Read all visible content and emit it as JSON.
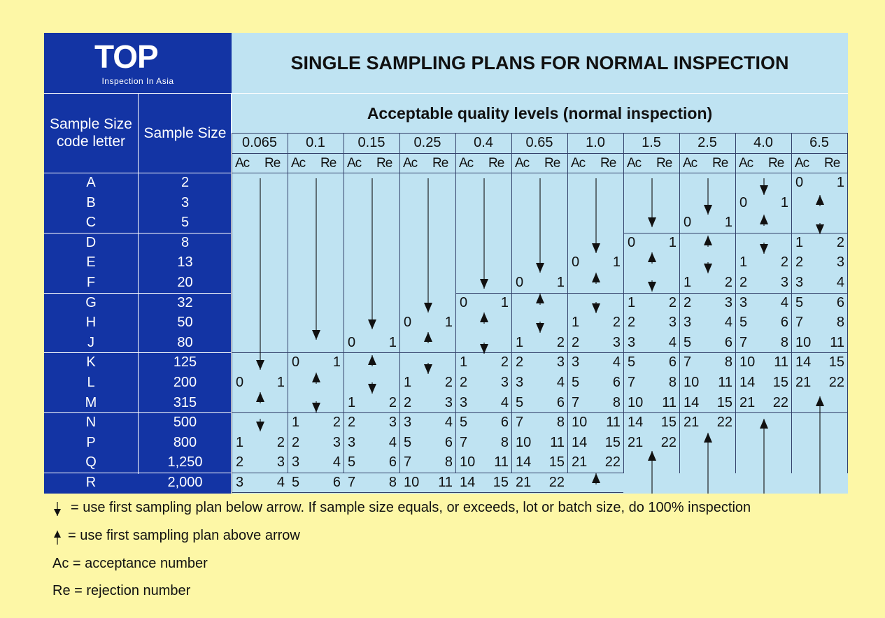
{
  "brand": {
    "logo_text": "TOP",
    "tagline": "Inspection In Asia"
  },
  "title": "SINGLE SAMPLING PLANS FOR NORMAL INSPECTION",
  "subtitle": "Acceptable quality levels (normal inspection)",
  "headers": {
    "code_letter": "Sample Size code letter",
    "sample_size": "Sample Size",
    "ac": "Ac",
    "re": "Re"
  },
  "aql_levels": [
    "0.065",
    "0.1",
    "0.15",
    "0.25",
    "0.4",
    "0.65",
    "1.0",
    "1.5",
    "2.5",
    "4.0",
    "6.5"
  ],
  "rows": [
    {
      "letter": "A",
      "size": "2"
    },
    {
      "letter": "B",
      "size": "3"
    },
    {
      "letter": "C",
      "size": "5"
    },
    {
      "letter": "D",
      "size": "8"
    },
    {
      "letter": "E",
      "size": "13"
    },
    {
      "letter": "F",
      "size": "20"
    },
    {
      "letter": "G",
      "size": "32"
    },
    {
      "letter": "H",
      "size": "50"
    },
    {
      "letter": "J",
      "size": "80"
    },
    {
      "letter": "K",
      "size": "125"
    },
    {
      "letter": "L",
      "size": "200"
    },
    {
      "letter": "M",
      "size": "315"
    },
    {
      "letter": "N",
      "size": "500"
    },
    {
      "letter": "P",
      "size": "800"
    },
    {
      "letter": "Q",
      "size": "1,250"
    },
    {
      "letter": "R",
      "size": "2,000"
    }
  ],
  "plans": [
    [
      null,
      null,
      null,
      null,
      null,
      null,
      null,
      null,
      null,
      null,
      [
        "0",
        "1"
      ]
    ],
    [
      null,
      null,
      null,
      null,
      null,
      null,
      null,
      null,
      null,
      [
        "0",
        "1"
      ],
      null
    ],
    [
      null,
      null,
      null,
      null,
      null,
      null,
      null,
      null,
      [
        "0",
        "1"
      ],
      null,
      null
    ],
    [
      null,
      null,
      null,
      null,
      null,
      null,
      null,
      [
        "0",
        "1"
      ],
      null,
      null,
      [
        "1",
        "2"
      ]
    ],
    [
      null,
      null,
      null,
      null,
      null,
      null,
      [
        "0",
        "1"
      ],
      null,
      null,
      [
        "1",
        "2"
      ],
      [
        "2",
        "3"
      ]
    ],
    [
      null,
      null,
      null,
      null,
      null,
      [
        "0",
        "1"
      ],
      null,
      null,
      [
        "1",
        "2"
      ],
      [
        "2",
        "3"
      ],
      [
        "3",
        "4"
      ]
    ],
    [
      null,
      null,
      null,
      null,
      [
        "0",
        "1"
      ],
      null,
      null,
      [
        "1",
        "2"
      ],
      [
        "2",
        "3"
      ],
      [
        "3",
        "4"
      ],
      [
        "5",
        "6"
      ]
    ],
    [
      null,
      null,
      null,
      [
        "0",
        "1"
      ],
      null,
      null,
      [
        "1",
        "2"
      ],
      [
        "2",
        "3"
      ],
      [
        "3",
        "4"
      ],
      [
        "5",
        "6"
      ],
      [
        "7",
        "8"
      ]
    ],
    [
      null,
      null,
      [
        "0",
        "1"
      ],
      null,
      null,
      [
        "1",
        "2"
      ],
      [
        "2",
        "3"
      ],
      [
        "3",
        "4"
      ],
      [
        "5",
        "6"
      ],
      [
        "7",
        "8"
      ],
      [
        "10",
        "11"
      ]
    ],
    [
      null,
      [
        "0",
        "1"
      ],
      null,
      null,
      [
        "1",
        "2"
      ],
      [
        "2",
        "3"
      ],
      [
        "3",
        "4"
      ],
      [
        "5",
        "6"
      ],
      [
        "7",
        "8"
      ],
      [
        "10",
        "11"
      ],
      [
        "14",
        "15"
      ]
    ],
    [
      [
        "0",
        "1"
      ],
      null,
      null,
      [
        "1",
        "2"
      ],
      [
        "2",
        "3"
      ],
      [
        "3",
        "4"
      ],
      [
        "5",
        "6"
      ],
      [
        "7",
        "8"
      ],
      [
        "10",
        "11"
      ],
      [
        "14",
        "15"
      ],
      [
        "21",
        "22"
      ]
    ],
    [
      null,
      null,
      [
        "1",
        "2"
      ],
      [
        "2",
        "3"
      ],
      [
        "3",
        "4"
      ],
      [
        "5",
        "6"
      ],
      [
        "7",
        "8"
      ],
      [
        "10",
        "11"
      ],
      [
        "14",
        "15"
      ],
      [
        "21",
        "22"
      ],
      null
    ],
    [
      null,
      [
        "1",
        "2"
      ],
      [
        "2",
        "3"
      ],
      [
        "3",
        "4"
      ],
      [
        "5",
        "6"
      ],
      [
        "7",
        "8"
      ],
      [
        "10",
        "11"
      ],
      [
        "14",
        "15"
      ],
      [
        "21",
        "22"
      ],
      null,
      null
    ],
    [
      [
        "1",
        "2"
      ],
      [
        "2",
        "3"
      ],
      [
        "3",
        "4"
      ],
      [
        "5",
        "6"
      ],
      [
        "7",
        "8"
      ],
      [
        "10",
        "11"
      ],
      [
        "14",
        "15"
      ],
      [
        "21",
        "22"
      ],
      null,
      null,
      null
    ],
    [
      [
        "2",
        "3"
      ],
      [
        "3",
        "4"
      ],
      [
        "5",
        "6"
      ],
      [
        "7",
        "8"
      ],
      [
        "10",
        "11"
      ],
      [
        "14",
        "15"
      ],
      [
        "21",
        "22"
      ],
      null,
      null,
      null,
      null
    ],
    [
      [
        "3",
        "4"
      ],
      [
        "5",
        "6"
      ],
      [
        "7",
        "8"
      ],
      [
        "10",
        "11"
      ],
      [
        "14",
        "15"
      ],
      [
        "21",
        "22"
      ],
      null,
      null,
      null,
      null,
      null
    ]
  ],
  "legend": {
    "down": "= use first sampling plan below arrow. If sample size equals, or exceeds, lot or batch size, do 100% inspection",
    "up": "= use first sampling plan above arrow",
    "ac": "Ac = acceptance number",
    "re": "Re = rejection number"
  }
}
